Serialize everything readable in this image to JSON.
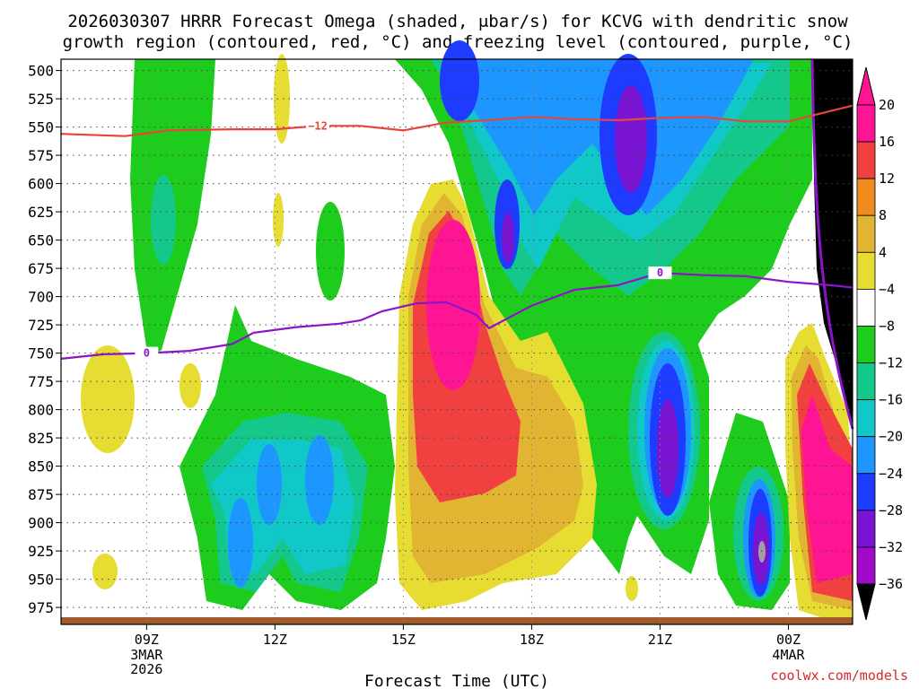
{
  "chart_data": {
    "type": "heatmap",
    "title_line1": "2026030307 HRRR Forecast Omega (shaded, μbar/s) for KCVG with dendritic snow",
    "title_line2": "growth region (contoured, red, °C) and freezing level (contoured, purple, °C)",
    "xlabel": "Forecast Time (UTC)",
    "credit": "coolwx.com/models",
    "x_range": [
      7,
      25.5
    ],
    "y_range": [
      990,
      490
    ],
    "y_ticks": [
      "500",
      "525",
      "550",
      "575",
      "600",
      "625",
      "650",
      "675",
      "700",
      "725",
      "750",
      "775",
      "800",
      "825",
      "850",
      "875",
      "900",
      "925",
      "950",
      "975"
    ],
    "x_ticks": [
      {
        "label": "09Z",
        "hour": 9,
        "sub": [
          "3MAR",
          "2026"
        ]
      },
      {
        "label": "12Z",
        "hour": 12,
        "sub": []
      },
      {
        "label": "15Z",
        "hour": 15,
        "sub": []
      },
      {
        "label": "18Z",
        "hour": 18,
        "sub": []
      },
      {
        "label": "21Z",
        "hour": 21,
        "sub": []
      },
      {
        "label": "00Z",
        "hour": 24,
        "sub": [
          "4MAR"
        ]
      }
    ],
    "colorbar": {
      "levels": [
        "20",
        "16",
        "12",
        "8",
        "4",
        "−4",
        "−8",
        "−12",
        "−16",
        "−20",
        "−24",
        "−28",
        "−32",
        "−36"
      ],
      "colors": [
        "#ff1493",
        "#f04040",
        "#f08c1e",
        "#e1b432",
        "#e6dc32",
        "#ffffff",
        "#1ecc1e",
        "#14c88c",
        "#10c8c8",
        "#1e96ff",
        "#1e3cff",
        "#7814d2",
        "#a00ac8",
        "#a0a0a0"
      ],
      "top_arrow_color": "#ff1493",
      "bottom_arrow_color": "#000000"
    },
    "dgz_contour": {
      "label": "−12",
      "color": "#e8443a",
      "points": [
        [
          7,
          556
        ],
        [
          8.5,
          558
        ],
        [
          9.5,
          553
        ],
        [
          11,
          552
        ],
        [
          12,
          552
        ],
        [
          13,
          549
        ],
        [
          14,
          549
        ],
        [
          15,
          553
        ],
        [
          16,
          546
        ],
        [
          17,
          544
        ],
        [
          18,
          541
        ],
        [
          19,
          543
        ],
        [
          20,
          544
        ],
        [
          21,
          542
        ],
        [
          22,
          541
        ],
        [
          23,
          545
        ],
        [
          24,
          545
        ],
        [
          25.5,
          531
        ]
      ]
    },
    "freezing_contour": {
      "label": "0",
      "color": "#8c14c8",
      "points": [
        [
          7,
          755
        ],
        [
          8,
          751
        ],
        [
          9,
          750
        ],
        [
          10,
          748
        ],
        [
          11,
          742
        ],
        [
          11.5,
          732
        ],
        [
          12.5,
          727
        ],
        [
          13.5,
          724
        ],
        [
          14,
          721
        ],
        [
          14.5,
          713
        ],
        [
          15.3,
          706
        ],
        [
          16,
          705
        ],
        [
          16.7,
          716
        ],
        [
          17,
          728
        ],
        [
          18,
          708
        ],
        [
          19,
          694
        ],
        [
          20,
          690
        ],
        [
          21,
          679
        ],
        [
          22,
          681
        ],
        [
          23,
          682
        ],
        [
          24,
          687
        ],
        [
          25,
          690
        ],
        [
          25.5,
          692
        ]
      ]
    },
    "shaded_regions": [
      {
        "name": "green-early",
        "color": "#1ecc1e"
      },
      {
        "name": "yellow-updraft",
        "color": "#e6dc32"
      },
      {
        "name": "orange-updraft",
        "color": "#e1b432"
      },
      {
        "name": "red-updraft",
        "color": "#f04040"
      },
      {
        "name": "magenta-updraft",
        "color": "#ff1493"
      },
      {
        "name": "blue-downdraft",
        "color": "#1e3cff"
      },
      {
        "name": "purple-downdraft",
        "color": "#7814d2"
      },
      {
        "name": "gray-min",
        "color": "#a0a0a0"
      },
      {
        "name": "terrain",
        "color": "#a05a2c"
      },
      {
        "name": "missing",
        "color": "#000000"
      }
    ]
  }
}
